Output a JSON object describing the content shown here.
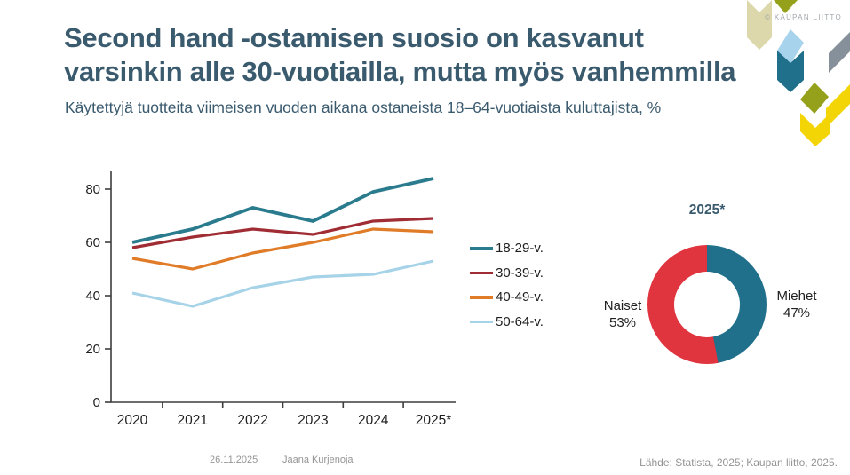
{
  "header": {
    "title_line1": "Second hand -ostamisen suosio on kasvanut",
    "title_line2": "varsinkin alle 30-vuotiailla, mutta myös vanhemmilla",
    "subtitle": "Käytettyjä tuotteita viimeisen vuoden aikana ostaneista 18–64-vuotiaista kuluttajista, %",
    "copyright": "© KAUPAN LIITTO"
  },
  "chart_data": [
    {
      "type": "line",
      "x": [
        "2020",
        "2021",
        "2022",
        "2023",
        "2024",
        "2025*"
      ],
      "series": [
        {
          "name": "18-29-v.",
          "color": "#2a7b8e",
          "values": [
            60,
            65,
            73,
            68,
            79,
            84
          ]
        },
        {
          "name": "30-39-v.",
          "color": "#a02c34",
          "values": [
            58,
            62,
            65,
            63,
            68,
            69
          ]
        },
        {
          "name": "40-49-v.",
          "color": "#e07b27",
          "values": [
            54,
            50,
            56,
            60,
            65,
            64
          ]
        },
        {
          "name": "50-64-v.",
          "color": "#a6d3e8",
          "values": [
            41,
            36,
            43,
            47,
            48,
            53
          ]
        }
      ],
      "yticks": [
        0,
        20,
        40,
        60,
        80
      ],
      "ylim": [
        0,
        87
      ],
      "grid": false,
      "legend_position": "right"
    },
    {
      "type": "pie",
      "donut": true,
      "title": "2025*",
      "slices": [
        {
          "label": "Miehet",
          "value": 47,
          "color": "#20708c",
          "label_side": "right"
        },
        {
          "label": "Naiset",
          "value": 53,
          "color": "#e0343f",
          "label_side": "left"
        }
      ]
    }
  ],
  "footer": {
    "date": "26.11.2025",
    "author": "Jaana Kurjenoja",
    "source": "Lähde: Statista, 2025; Kaupan liitto, 2025."
  },
  "palette": {
    "title_text": "#3a5a6e",
    "axis_text": "#1f1f1f",
    "muted_text": "#949494",
    "deco_khaki": "#ddd8ab",
    "deco_olive": "#95a01b",
    "deco_blue": "#a7d4ec",
    "deco_teal": "#20708c",
    "deco_gray": "#85909a",
    "deco_yellow": "#f3d505"
  }
}
